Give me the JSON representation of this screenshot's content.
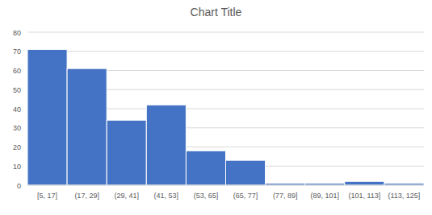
{
  "chart_data": {
    "type": "histogram",
    "title": "Chart Title",
    "categories": [
      "[5, 17]",
      "(17, 29]",
      "(29, 41]",
      "(41, 53]",
      "(53, 65]",
      "(65, 77]",
      "(77, 89]",
      "(89, 101]",
      "(101, 113]",
      "(113, 125]"
    ],
    "bins": [
      5,
      17,
      29,
      41,
      53,
      65,
      77,
      89,
      101,
      113,
      125
    ],
    "values": [
      71,
      61,
      34,
      42,
      18,
      13,
      1,
      1,
      2,
      1
    ],
    "color": "#4472c4",
    "xlim": [
      5,
      125
    ],
    "ylim": [
      0,
      80
    ],
    "yticks": [
      0,
      10,
      20,
      30,
      40,
      50,
      60,
      70,
      80
    ],
    "grid": true
  }
}
